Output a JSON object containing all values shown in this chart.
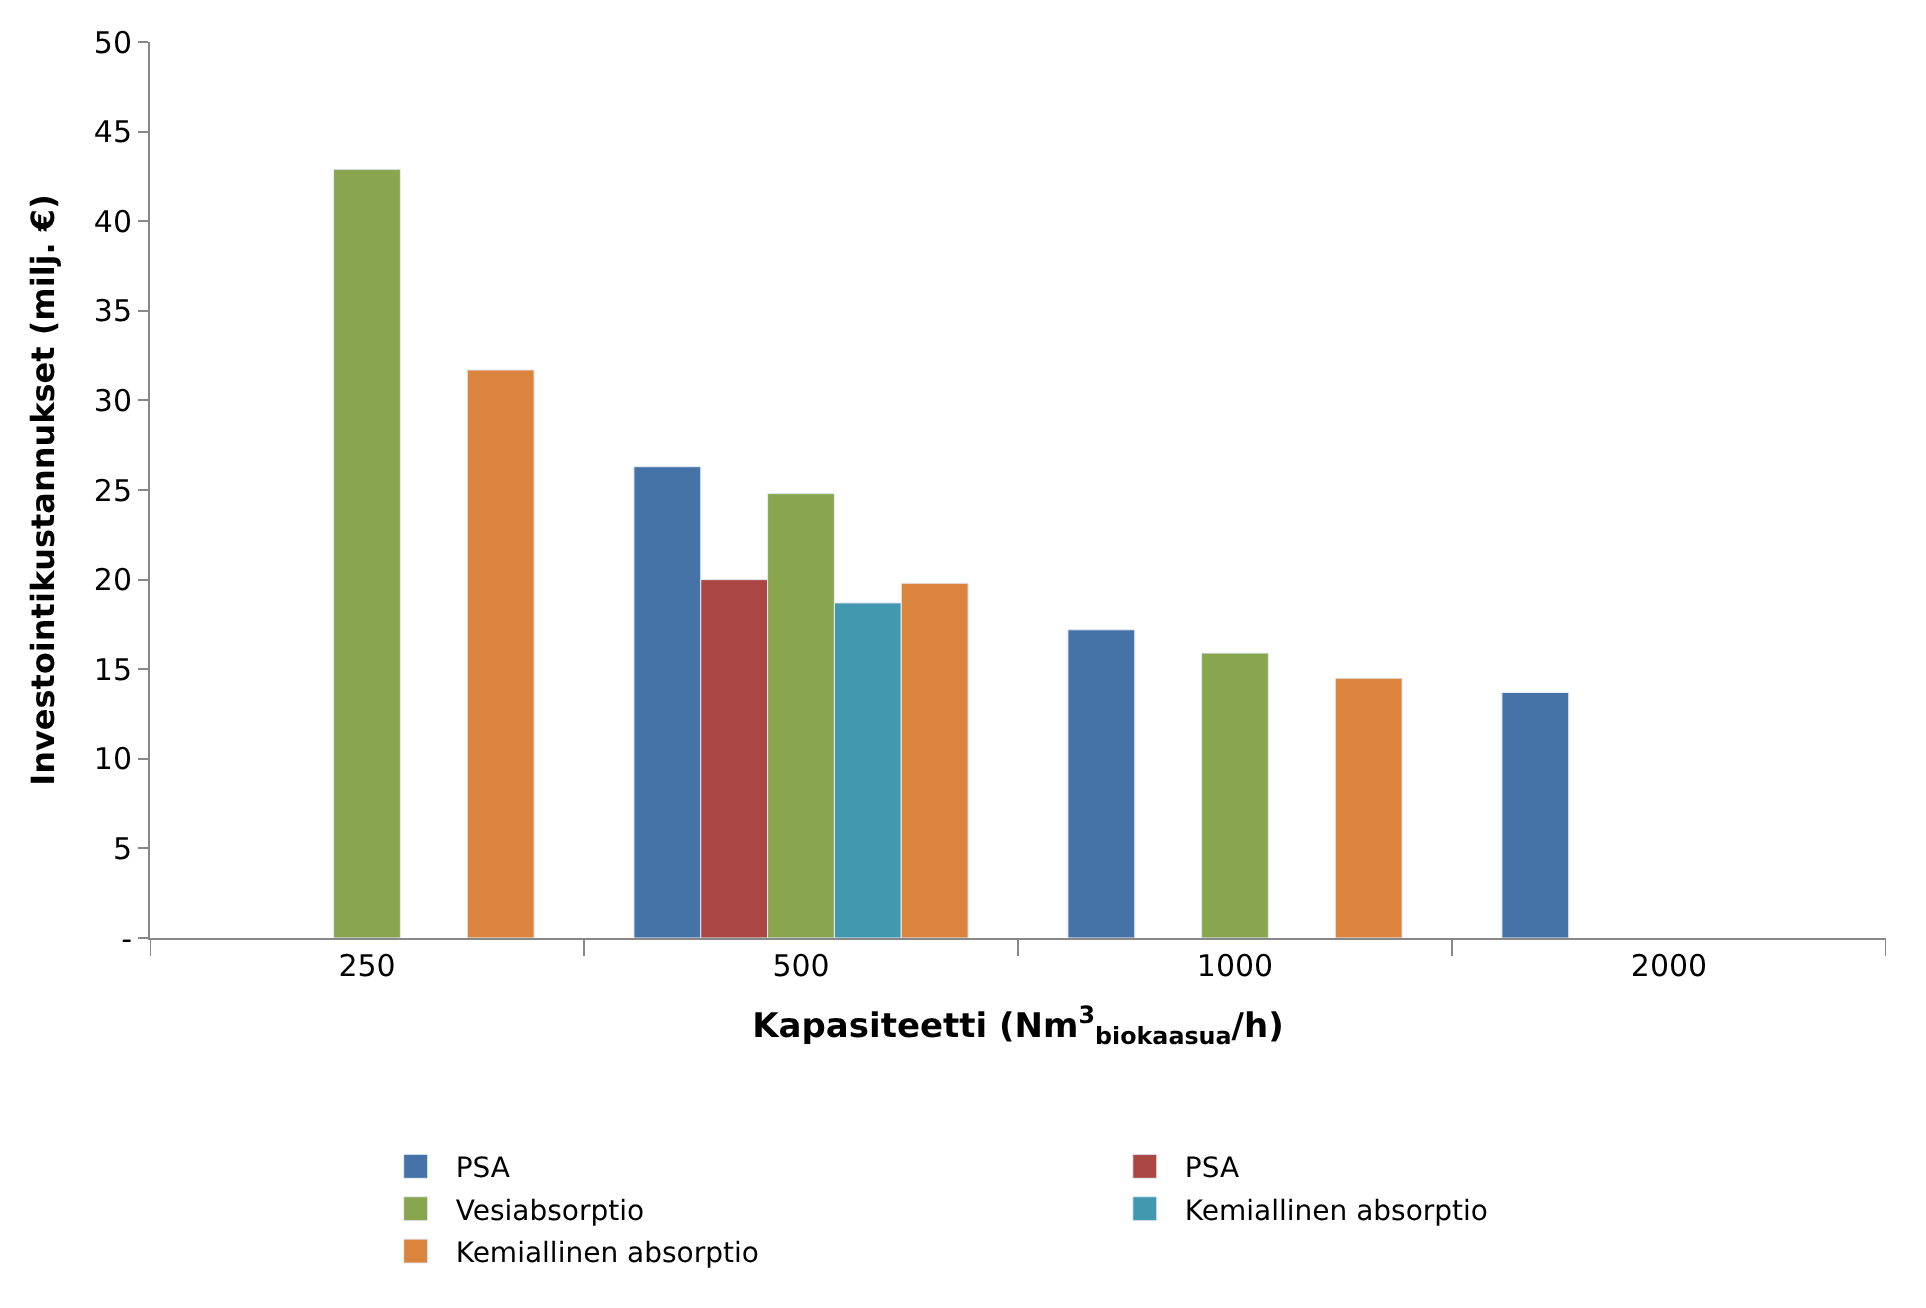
{
  "chart_data": {
    "type": "bar",
    "xlabel": "Kapasiteetti (Nm$^{3}$$_{biokaasua}$/h)",
    "ylabel": "Investointikustannukset (milj. €)",
    "categories": [
      "250",
      "500",
      "1000",
      "2000"
    ],
    "series": [
      {
        "name": "PSA",
        "color": "#4572a7",
        "values": [
          null,
          26.3,
          17.2,
          13.7
        ]
      },
      {
        "name": "PSA",
        "color": "#aa4643",
        "values": [
          null,
          20.0,
          null,
          null
        ]
      },
      {
        "name": "Vesiabsorptio",
        "color": "#89a54e",
        "values": [
          42.9,
          24.8,
          15.9,
          null
        ]
      },
      {
        "name": "Kemiallinen absorptio",
        "color": "#4198af",
        "values": [
          null,
          18.7,
          null,
          null
        ]
      },
      {
        "name": "Kemiallinen absorptio",
        "color": "#db843d",
        "values": [
          31.7,
          19.8,
          14.5,
          null
        ]
      }
    ],
    "ylim": [
      0,
      50
    ],
    "yticks": [
      {
        "value": 0,
        "label": "-"
      },
      5,
      10,
      15,
      20,
      25,
      30,
      35,
      40,
      45,
      50
    ],
    "legend": "bottom"
  }
}
